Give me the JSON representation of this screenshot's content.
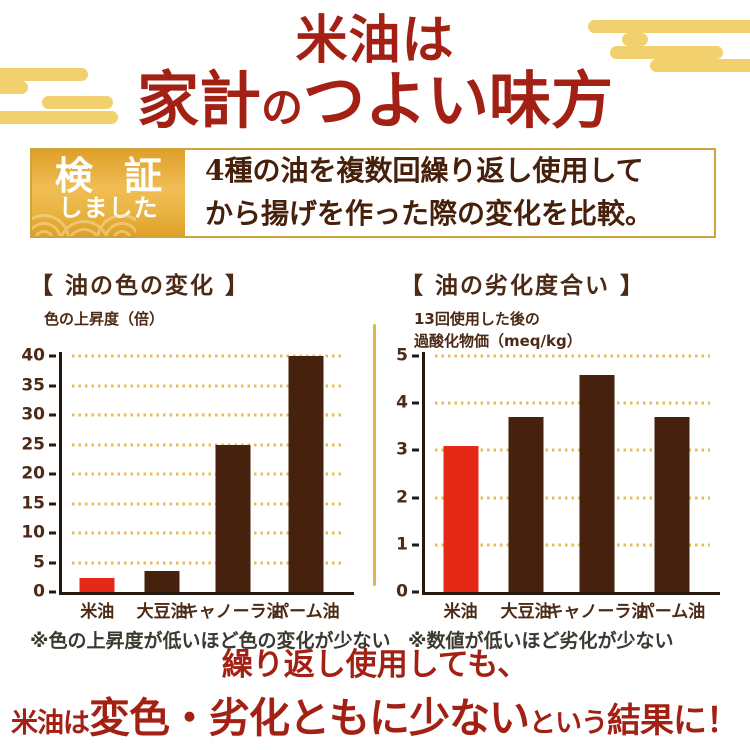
{
  "colors": {
    "title_red": "#a32114",
    "cloud_gold": "#f3d06e",
    "banner_border": "#cda33d",
    "badge_gold_dark": "#df9f28",
    "badge_gold_light": "#f0bd55",
    "lead_brown": "#46200a",
    "chart_text_brown": "#4c2a15",
    "axis_dark": "#261a10",
    "grid_gold": "#e8bc55",
    "bar_red": "#e62817",
    "bar_brown": "#45210e",
    "note_gray": "#3d3931",
    "divider_gold": "#e2b44c",
    "white": "#ffffff"
  },
  "header": {
    "line1": "米油は",
    "line2_seg1": "家計",
    "line2_no": "の",
    "line2_seg2": "つよい味方"
  },
  "badge": {
    "line1": "検 証",
    "line2": "しました"
  },
  "lead": {
    "line1": "4種の油を複数回繰り返し使用して",
    "line2": "から揚げを作った際の変化を比較。"
  },
  "chart_data": [
    {
      "type": "bar",
      "title": "【 油の色の変化 】",
      "ylabel": "色の上昇度（倍）",
      "ylabel2": "",
      "categories": [
        "米油",
        "大豆油",
        "キャノーラ油",
        "パーム油"
      ],
      "values": [
        2.4,
        3.5,
        25,
        40
      ],
      "bar_colors": [
        "#e62817",
        "#45210e",
        "#45210e",
        "#45210e"
      ],
      "ylim": [
        0,
        40
      ],
      "ytick_step": 5,
      "grid": "dotted horizontal gold lines at each tick",
      "legend": "none",
      "note": "※色の上昇度が低いほど色の変化が少ない"
    },
    {
      "type": "bar",
      "title": "【 油の劣化度合い 】",
      "ylabel": "13回使用した後の",
      "ylabel2": "過酸化物価（meq/kg）",
      "categories": [
        "米油",
        "大豆油",
        "キャノーラ油",
        "パーム油"
      ],
      "values": [
        3.1,
        3.7,
        4.6,
        3.7
      ],
      "bar_colors": [
        "#e62817",
        "#45210e",
        "#45210e",
        "#45210e"
      ],
      "ylim": [
        0,
        5
      ],
      "ytick_step": 1,
      "grid": "dotted horizontal gold lines at each tick",
      "legend": "none",
      "note": "※数値が低いほど劣化が少ない"
    }
  ],
  "conclusion": {
    "line1": "繰り返し使用しても、",
    "seg1": "米油は",
    "seg2": "変色・劣化ともに少ない",
    "seg3": "という",
    "seg4": "結果に！"
  }
}
